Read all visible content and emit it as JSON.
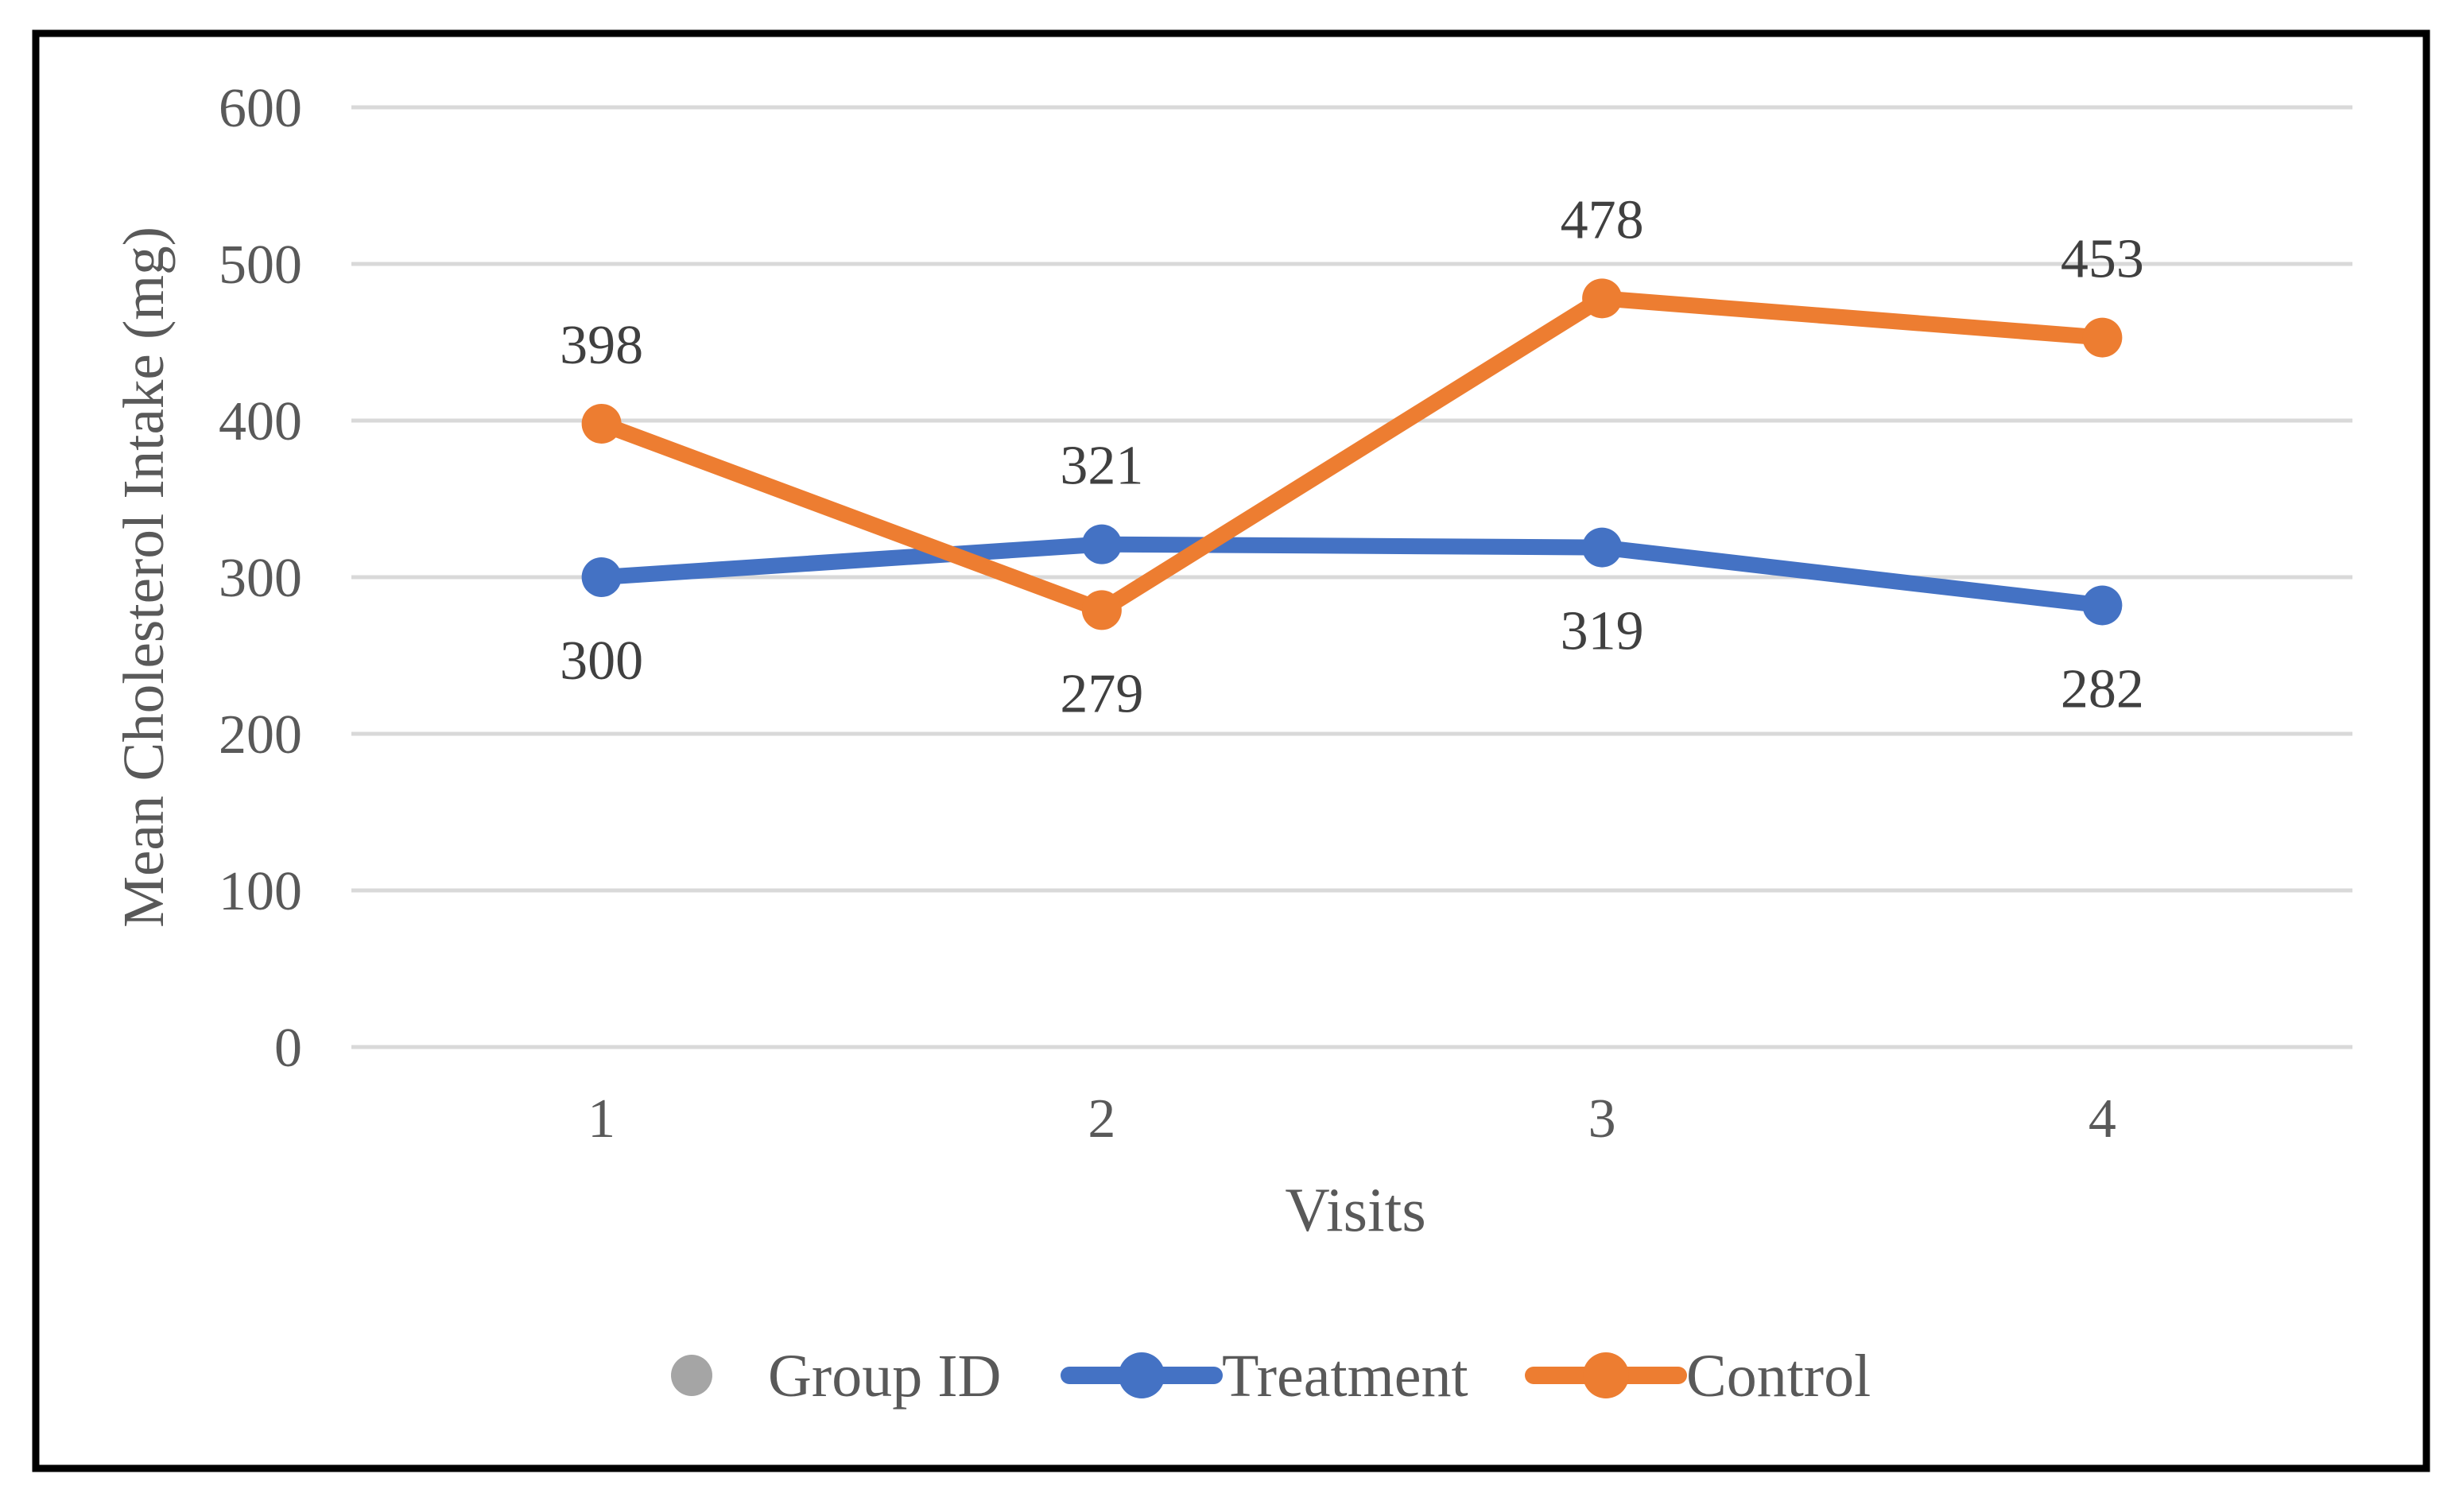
{
  "figure": {
    "background_color": "#ffffff",
    "frame_color": "#000000"
  },
  "chart_data": {
    "type": "line",
    "title": "",
    "xlabel": "Visits",
    "ylabel": "Mean Cholesterol Intake (mg)",
    "categories": [
      "1",
      "2",
      "3",
      "4"
    ],
    "ylim": [
      0,
      600
    ],
    "yticks": [
      0,
      100,
      200,
      300,
      400,
      500,
      600
    ],
    "grid": true,
    "legend_position": "bottom",
    "series": [
      {
        "name": "Group ID",
        "color": "#A5A5A5",
        "legend_marker": "dot",
        "values": [],
        "data_labels": []
      },
      {
        "name": "Treatment",
        "color": "#4472C4",
        "legend_marker": "line-dot",
        "values": [
          300,
          321,
          319,
          282
        ],
        "data_labels": [
          {
            "text": "300",
            "position": "below"
          },
          {
            "text": "321",
            "position": "above"
          },
          {
            "text": "319",
            "position": "below"
          },
          {
            "text": "282",
            "position": "below"
          }
        ]
      },
      {
        "name": "Control",
        "color": "#ED7D31",
        "legend_marker": "line-dot",
        "values": [
          398,
          279,
          478,
          453
        ],
        "data_labels": [
          {
            "text": "398",
            "position": "above"
          },
          {
            "text": "279",
            "position": "below"
          },
          {
            "text": "478",
            "position": "above"
          },
          {
            "text": "453",
            "position": "above"
          }
        ]
      }
    ],
    "colors": {
      "gridline": "#D9D9D9",
      "axis_text": "#595959",
      "data_label_text": "#404040"
    }
  }
}
